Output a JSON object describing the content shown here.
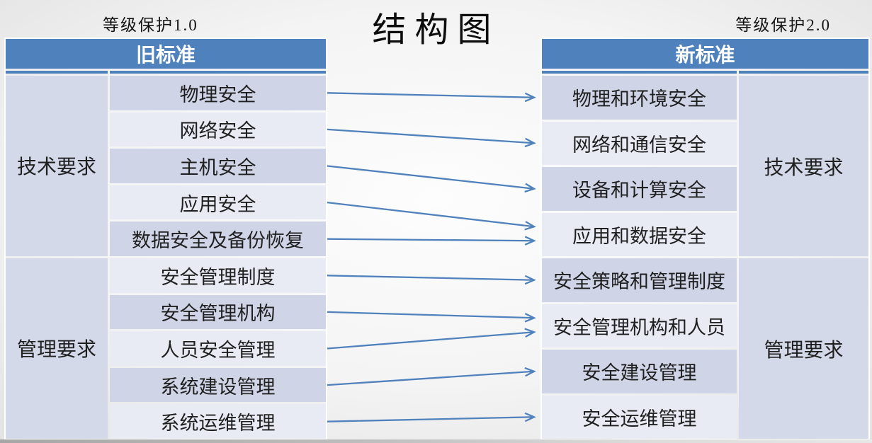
{
  "title": "结构图",
  "corner_labels": {
    "left": "等级保护1.0",
    "right": "等级保护2.0"
  },
  "old_table": {
    "header": "旧标准",
    "groups": [
      {
        "label": "技术要求",
        "items": [
          "物理安全",
          "网络安全",
          "主机安全",
          "应用安全",
          "数据安全及备份恢复"
        ]
      },
      {
        "label": "管理要求",
        "items": [
          "安全管理制度",
          "安全管理机构",
          "人员安全管理",
          "系统建设管理",
          "系统运维管理"
        ]
      }
    ]
  },
  "new_table": {
    "header": "新标准",
    "groups": [
      {
        "label": "技术要求",
        "items": [
          "物理和环境安全",
          "网络和通信安全",
          "设备和计算安全",
          "应用和数据安全"
        ]
      },
      {
        "label": "管理要求",
        "items": [
          "安全策略和管理制度",
          "安全管理机构和人员",
          "安全建设管理",
          "安全运维管理"
        ]
      }
    ]
  },
  "mappings": [
    {
      "from": "物理安全",
      "to": "物理和环境安全"
    },
    {
      "from": "网络安全",
      "to": "网络和通信安全"
    },
    {
      "from": "主机安全",
      "to": "设备和计算安全"
    },
    {
      "from": "应用安全",
      "to": "应用和数据安全"
    },
    {
      "from": "数据安全及备份恢复",
      "to": "应用和数据安全"
    },
    {
      "from": "安全管理制度",
      "to": "安全策略和管理制度"
    },
    {
      "from": "安全管理机构",
      "to": "安全管理机构和人员"
    },
    {
      "from": "人员安全管理",
      "to": "安全管理机构和人员"
    },
    {
      "from": "系统建设管理",
      "to": "安全建设管理"
    },
    {
      "from": "系统运维管理",
      "to": "安全运维管理"
    }
  ],
  "colors": {
    "header_bg": "#4F81BD",
    "header_text": "#FFFFFF",
    "band_dark": "#CFD5E6",
    "band_light": "#E8EBF4",
    "group_bg": "#D3D9E8",
    "cell_text": "#1F1F1F",
    "arrow": "#4F81BD"
  }
}
